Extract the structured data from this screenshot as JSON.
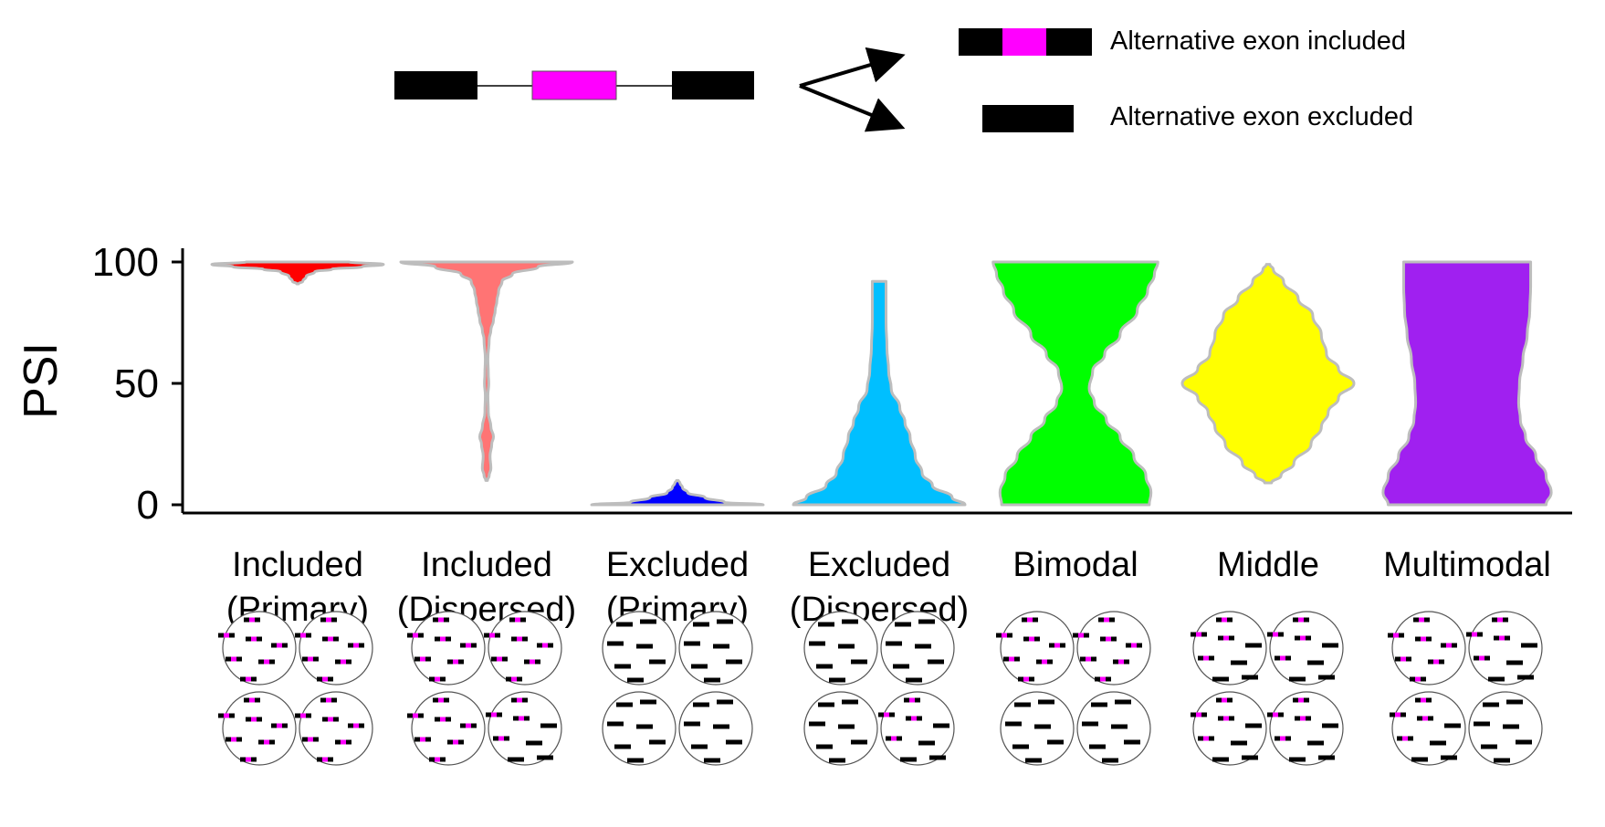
{
  "schematic": {
    "included_label": "Alternative exon included",
    "excluded_label": "Alternative exon excluded"
  },
  "colors": {
    "constitutive_exon": "#000000",
    "alternative_exon": "#ff00ff",
    "violin_outline": "#bdbdbd"
  },
  "chart_data": {
    "type": "violin",
    "ylabel": "PSI",
    "ylim": [
      0,
      100
    ],
    "yticks": [
      0,
      50,
      100
    ],
    "grid": false,
    "categories": [
      {
        "line1": "Included",
        "line2": "(Primary)",
        "color": "#ff0000",
        "profile": [
          [
            91,
            0.01
          ],
          [
            92,
            0.06
          ],
          [
            94,
            0.1
          ],
          [
            96,
            0.2
          ],
          [
            97,
            0.4
          ],
          [
            98,
            0.75
          ],
          [
            99,
            1.0
          ],
          [
            100,
            0.6
          ]
        ],
        "cells": [
          "inc",
          "inc",
          "inc",
          "inc"
        ]
      },
      {
        "line1": "Included",
        "line2": "(Dispersed)",
        "color": "#ff7474",
        "profile": [
          [
            10,
            0.01
          ],
          [
            12,
            0.03
          ],
          [
            15,
            0.05
          ],
          [
            20,
            0.04
          ],
          [
            25,
            0.06
          ],
          [
            28,
            0.08
          ],
          [
            32,
            0.05
          ],
          [
            38,
            0.02
          ],
          [
            45,
            0.015
          ],
          [
            50,
            0.025
          ],
          [
            54,
            0.02
          ],
          [
            60,
            0.015
          ],
          [
            68,
            0.03
          ],
          [
            72,
            0.05
          ],
          [
            76,
            0.08
          ],
          [
            80,
            0.1
          ],
          [
            84,
            0.12
          ],
          [
            88,
            0.14
          ],
          [
            92,
            0.18
          ],
          [
            95,
            0.3
          ],
          [
            98,
            0.6
          ],
          [
            100,
            1.0
          ]
        ],
        "cells": [
          "inc",
          "inc",
          "inc",
          "mix"
        ]
      },
      {
        "line1": "Excluded",
        "line2": "(Primary)",
        "color": "#0000ff",
        "profile": [
          [
            0,
            1.0
          ],
          [
            1,
            0.55
          ],
          [
            3,
            0.32
          ],
          [
            5,
            0.12
          ],
          [
            7,
            0.06
          ],
          [
            9,
            0.03
          ],
          [
            10,
            0.01
          ]
        ],
        "cells": [
          "exc",
          "exc",
          "exc",
          "exc"
        ]
      },
      {
        "line1": "Excluded",
        "line2": "(Dispersed)",
        "color": "#00bfff",
        "profile": [
          [
            0,
            1.0
          ],
          [
            3,
            0.85
          ],
          [
            8,
            0.62
          ],
          [
            13,
            0.5
          ],
          [
            20,
            0.42
          ],
          [
            28,
            0.36
          ],
          [
            34,
            0.3
          ],
          [
            40,
            0.24
          ],
          [
            48,
            0.14
          ],
          [
            55,
            0.11
          ],
          [
            65,
            0.09
          ],
          [
            75,
            0.08
          ],
          [
            85,
            0.08
          ],
          [
            92,
            0.08
          ]
        ],
        "cells": [
          "exc",
          "exc",
          "exc",
          "mix"
        ]
      },
      {
        "line1": "Bimodal",
        "line2": "",
        "color": "#00ff00",
        "profile": [
          [
            0,
            0.86
          ],
          [
            5,
            0.88
          ],
          [
            12,
            0.82
          ],
          [
            20,
            0.68
          ],
          [
            28,
            0.52
          ],
          [
            35,
            0.36
          ],
          [
            42,
            0.22
          ],
          [
            48,
            0.16
          ],
          [
            55,
            0.2
          ],
          [
            62,
            0.34
          ],
          [
            70,
            0.52
          ],
          [
            80,
            0.72
          ],
          [
            88,
            0.84
          ],
          [
            95,
            0.92
          ],
          [
            100,
            0.96
          ]
        ],
        "cells": [
          "inc",
          "inc",
          "exc",
          "exc"
        ]
      },
      {
        "line1": "Middle",
        "line2": "",
        "color": "#ffff00",
        "profile": [
          [
            9,
            0.04
          ],
          [
            12,
            0.15
          ],
          [
            17,
            0.3
          ],
          [
            25,
            0.5
          ],
          [
            32,
            0.62
          ],
          [
            38,
            0.7
          ],
          [
            44,
            0.82
          ],
          [
            50,
            1.0
          ],
          [
            56,
            0.82
          ],
          [
            62,
            0.68
          ],
          [
            70,
            0.62
          ],
          [
            78,
            0.52
          ],
          [
            85,
            0.35
          ],
          [
            92,
            0.18
          ],
          [
            97,
            0.06
          ],
          [
            99,
            0.02
          ]
        ],
        "cells": [
          "mix",
          "mix",
          "mix",
          "mix"
        ]
      },
      {
        "line1": "Multimodal",
        "line2": "",
        "color": "#a020f0",
        "profile": [
          [
            0,
            0.92
          ],
          [
            5,
            0.98
          ],
          [
            12,
            0.92
          ],
          [
            20,
            0.8
          ],
          [
            28,
            0.68
          ],
          [
            35,
            0.62
          ],
          [
            42,
            0.6
          ],
          [
            50,
            0.61
          ],
          [
            60,
            0.65
          ],
          [
            70,
            0.7
          ],
          [
            80,
            0.73
          ],
          [
            90,
            0.74
          ],
          [
            100,
            0.74
          ]
        ],
        "cells": [
          "inc",
          "mix",
          "mix",
          "exc"
        ]
      }
    ]
  }
}
